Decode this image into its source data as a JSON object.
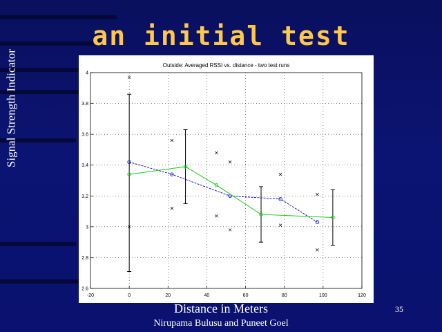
{
  "slide": {
    "title": "an initial test",
    "authors": "Nirupama Bulusu and Puneet Goel",
    "page_number": "35"
  },
  "colors": {
    "background": "#0b1472",
    "title": "#ffc84a",
    "series_blue": "#1a1ad0",
    "series_green": "#19cc19",
    "errorbar": "#000000"
  },
  "chart_data": {
    "type": "line",
    "title": "Outside: Averaged RSSI vs. distance - two test runs",
    "xlabel": "Distance in Meters",
    "ylabel": "Signal Strength Indicator",
    "xlim": [
      -20,
      120
    ],
    "ylim": [
      2.6,
      4.0
    ],
    "xticks": [
      "-20",
      "0",
      "20",
      "40",
      "60",
      "80",
      "100",
      "120"
    ],
    "yticks": [
      "2.6",
      "2.8",
      "3",
      "3.2",
      "3.4",
      "3.6",
      "3.8",
      "4"
    ],
    "grid": true,
    "series": [
      {
        "color": "#1a1ad0",
        "marker": "o",
        "x": [
          0,
          22,
          52,
          78,
          97
        ],
        "y": [
          3.42,
          3.34,
          3.2,
          3.18,
          3.03
        ]
      },
      {
        "color": "#19cc19",
        "marker": "o",
        "x": [
          0,
          29,
          45,
          68,
          105
        ],
        "y": [
          3.34,
          3.39,
          3.27,
          3.08,
          3.06
        ]
      }
    ],
    "errorbars": [
      {
        "x": 0,
        "low": 2.71,
        "high": 3.86
      },
      {
        "x": 29,
        "low": 3.15,
        "high": 3.63
      },
      {
        "x": 68,
        "low": 2.9,
        "high": 3.26
      },
      {
        "x": 105,
        "low": 2.88,
        "high": 3.24
      }
    ],
    "scatter": [
      {
        "x": 0,
        "y": 3.97
      },
      {
        "x": 0,
        "y": 3.0
      },
      {
        "x": 22,
        "y": 3.56
      },
      {
        "x": 22,
        "y": 3.12
      },
      {
        "x": 45,
        "y": 3.48
      },
      {
        "x": 45,
        "y": 3.07
      },
      {
        "x": 52,
        "y": 3.42
      },
      {
        "x": 52,
        "y": 2.98
      },
      {
        "x": 78,
        "y": 3.34
      },
      {
        "x": 78,
        "y": 3.01
      },
      {
        "x": 97,
        "y": 3.21
      },
      {
        "x": 97,
        "y": 2.85
      }
    ]
  }
}
